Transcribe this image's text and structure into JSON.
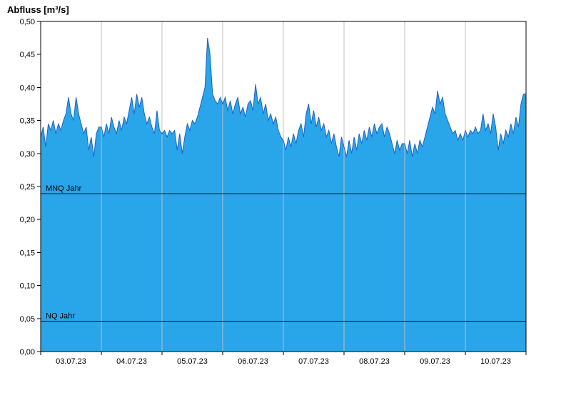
{
  "title": "Abfluss [m³/s]",
  "unit": "m³/s",
  "chart_data": {
    "type": "area",
    "title": "Abfluss [m³/s]",
    "ylabel": "Abfluss [m³/s]",
    "ylim": [
      0,
      0.5
    ],
    "days": 8,
    "samples_per_day": 24,
    "grid": "vertical-day-lines",
    "x_categories": [
      "03.07.23",
      "04.07.23",
      "05.07.23",
      "06.07.23",
      "07.07.23",
      "08.07.23",
      "09.07.23",
      "10.07.23"
    ],
    "y_tick_values": [
      0,
      0.05,
      0.1,
      0.15,
      0.2,
      0.25,
      0.3,
      0.35,
      0.4,
      0.45,
      0.5
    ],
    "y_tick_labels": [
      "0,00",
      "0,05",
      "0,10",
      "0,15",
      "0,20",
      "0,25",
      "0,30",
      "0,35",
      "0,40",
      "0,45",
      "0,50"
    ],
    "reference_lines": [
      {
        "id": "mnq",
        "label": "MNQ Jahr",
        "value": 0.239
      },
      {
        "id": "nq",
        "label": "NQ Jahr",
        "value": 0.046
      }
    ],
    "values": [
      0.325,
      0.34,
      0.31,
      0.345,
      0.335,
      0.35,
      0.33,
      0.345,
      0.335,
      0.35,
      0.36,
      0.385,
      0.36,
      0.35,
      0.385,
      0.36,
      0.345,
      0.33,
      0.34,
      0.305,
      0.325,
      0.295,
      0.33,
      0.34,
      0.34,
      0.325,
      0.345,
      0.33,
      0.355,
      0.34,
      0.33,
      0.35,
      0.335,
      0.355,
      0.345,
      0.365,
      0.385,
      0.36,
      0.39,
      0.37,
      0.385,
      0.36,
      0.345,
      0.355,
      0.34,
      0.33,
      0.365,
      0.335,
      0.33,
      0.335,
      0.325,
      0.335,
      0.33,
      0.335,
      0.305,
      0.33,
      0.3,
      0.325,
      0.345,
      0.335,
      0.35,
      0.345,
      0.355,
      0.37,
      0.385,
      0.4,
      0.475,
      0.45,
      0.39,
      0.38,
      0.375,
      0.385,
      0.375,
      0.385,
      0.365,
      0.38,
      0.36,
      0.375,
      0.385,
      0.36,
      0.37,
      0.355,
      0.375,
      0.38,
      0.365,
      0.405,
      0.375,
      0.385,
      0.36,
      0.375,
      0.35,
      0.36,
      0.345,
      0.355,
      0.335,
      0.325,
      0.32,
      0.305,
      0.325,
      0.31,
      0.33,
      0.315,
      0.335,
      0.345,
      0.325,
      0.36,
      0.375,
      0.345,
      0.365,
      0.34,
      0.355,
      0.335,
      0.345,
      0.325,
      0.335,
      0.315,
      0.33,
      0.31,
      0.295,
      0.325,
      0.31,
      0.295,
      0.32,
      0.3,
      0.325,
      0.305,
      0.33,
      0.315,
      0.335,
      0.32,
      0.34,
      0.325,
      0.345,
      0.33,
      0.34,
      0.345,
      0.325,
      0.34,
      0.33,
      0.315,
      0.3,
      0.32,
      0.305,
      0.315,
      0.315,
      0.3,
      0.32,
      0.295,
      0.315,
      0.3,
      0.32,
      0.31,
      0.325,
      0.34,
      0.355,
      0.37,
      0.36,
      0.395,
      0.375,
      0.385,
      0.36,
      0.35,
      0.34,
      0.33,
      0.335,
      0.32,
      0.33,
      0.32,
      0.335,
      0.325,
      0.335,
      0.33,
      0.34,
      0.33,
      0.335,
      0.36,
      0.335,
      0.345,
      0.33,
      0.36,
      0.34,
      0.305,
      0.33,
      0.315,
      0.335,
      0.325,
      0.345,
      0.33,
      0.355,
      0.34,
      0.375,
      0.39
    ],
    "colors": {
      "fill": "#29A5E9",
      "line": "#1E62C5",
      "grid": "#C0C0C0",
      "reference": "#101040",
      "axis": "#000000",
      "background": "#FFFFFF"
    }
  }
}
